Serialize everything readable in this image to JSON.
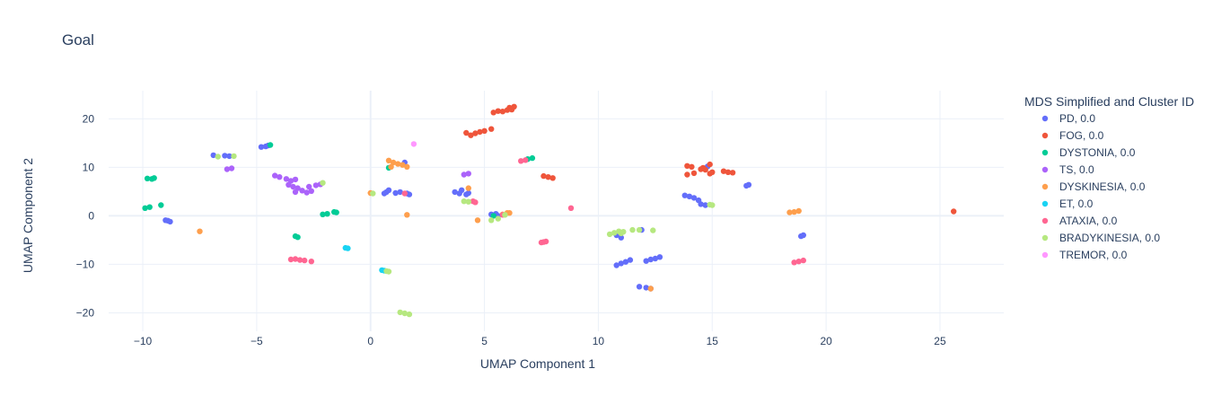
{
  "chart_data": {
    "type": "scatter",
    "title": "Goal",
    "xlabel": "UMAP Component 1",
    "ylabel": "UMAP Component 2",
    "xlim": [
      -11.5,
      27.8
    ],
    "ylim": [
      -23.8,
      25.8
    ],
    "xticks": [
      -10,
      -5,
      0,
      5,
      10,
      15,
      20,
      25
    ],
    "yticks": [
      -20,
      -10,
      0,
      10,
      20
    ],
    "grid": true,
    "legend_title": "MDS Simplified and Cluster ID",
    "legend_position": "right",
    "series": [
      {
        "name": "PD, 0.0",
        "color": "#636efa",
        "points": [
          [
            -6.9,
            12.5
          ],
          [
            -6.4,
            12.4
          ],
          [
            -6.2,
            12.3
          ],
          [
            -4.8,
            14.2
          ],
          [
            -4.6,
            14.3
          ],
          [
            -4.5,
            14.5
          ],
          [
            -9.0,
            -0.9
          ],
          [
            -8.9,
            -1.0
          ],
          [
            -8.8,
            -1.2
          ],
          [
            0.6,
            4.6
          ],
          [
            0.7,
            4.9
          ],
          [
            0.8,
            5.3
          ],
          [
            1.1,
            4.7
          ],
          [
            1.3,
            4.9
          ],
          [
            1.6,
            4.6
          ],
          [
            1.7,
            4.4
          ],
          [
            1.5,
            11.0
          ],
          [
            3.7,
            4.9
          ],
          [
            3.9,
            4.6
          ],
          [
            4.0,
            5.3
          ],
          [
            4.2,
            4.4
          ],
          [
            4.3,
            4.7
          ],
          [
            5.3,
            0.3
          ],
          [
            5.5,
            0.4
          ],
          [
            5.6,
            0.0
          ],
          [
            10.8,
            -10.2
          ],
          [
            11.0,
            -9.8
          ],
          [
            11.2,
            -9.5
          ],
          [
            11.4,
            -9.1
          ],
          [
            11.0,
            -4.5
          ],
          [
            10.8,
            -4.0
          ],
          [
            11.9,
            -2.9
          ],
          [
            12.1,
            -9.3
          ],
          [
            12.3,
            -9.0
          ],
          [
            12.5,
            -8.8
          ],
          [
            12.7,
            -8.5
          ],
          [
            11.8,
            -14.6
          ],
          [
            12.1,
            -14.8
          ],
          [
            12.3,
            -15.0
          ],
          [
            13.8,
            4.2
          ],
          [
            14.0,
            4.0
          ],
          [
            14.2,
            3.7
          ],
          [
            14.4,
            3.2
          ],
          [
            14.5,
            2.4
          ],
          [
            14.7,
            2.2
          ],
          [
            14.8,
            10.2
          ],
          [
            16.5,
            6.2
          ],
          [
            16.6,
            6.4
          ],
          [
            18.9,
            -4.2
          ],
          [
            19.0,
            -4.0
          ]
        ]
      },
      {
        "name": "FOG, 0.0",
        "color": "#ef553b",
        "points": [
          [
            4.2,
            17.1
          ],
          [
            4.4,
            16.6
          ],
          [
            4.6,
            17.0
          ],
          [
            4.8,
            17.3
          ],
          [
            5.0,
            17.5
          ],
          [
            5.3,
            17.9
          ],
          [
            5.4,
            21.3
          ],
          [
            5.6,
            21.6
          ],
          [
            5.8,
            21.5
          ],
          [
            6.0,
            21.8
          ],
          [
            6.1,
            22.3
          ],
          [
            6.3,
            22.5
          ],
          [
            6.2,
            21.9
          ],
          [
            7.6,
            8.2
          ],
          [
            7.8,
            8.0
          ],
          [
            8.0,
            7.8
          ],
          [
            13.9,
            10.3
          ],
          [
            14.1,
            10.1
          ],
          [
            13.9,
            8.5
          ],
          [
            14.2,
            8.8
          ],
          [
            14.5,
            9.6
          ],
          [
            14.6,
            9.9
          ],
          [
            14.7,
            9.5
          ],
          [
            14.9,
            10.6
          ],
          [
            15.0,
            9.0
          ],
          [
            14.9,
            8.7
          ],
          [
            15.5,
            9.2
          ],
          [
            15.7,
            9.0
          ],
          [
            15.9,
            8.9
          ],
          [
            25.6,
            0.9
          ]
        ]
      },
      {
        "name": "DYSTONIA, 0.0",
        "color": "#00cc96",
        "points": [
          [
            -9.9,
            1.6
          ],
          [
            -9.7,
            1.8
          ],
          [
            -9.2,
            2.2
          ],
          [
            -9.6,
            7.6
          ],
          [
            -9.8,
            7.7
          ],
          [
            -9.5,
            7.8
          ],
          [
            -4.4,
            14.6
          ],
          [
            -3.3,
            -4.2
          ],
          [
            -3.2,
            -4.4
          ],
          [
            -2.1,
            0.3
          ],
          [
            -1.9,
            0.4
          ],
          [
            -1.6,
            0.8
          ],
          [
            -1.5,
            0.7
          ],
          [
            0.8,
            9.9
          ],
          [
            5.4,
            0.0
          ],
          [
            6.9,
            11.7
          ],
          [
            7.1,
            11.9
          ]
        ]
      },
      {
        "name": "TS, 0.0",
        "color": "#ab63fa",
        "points": [
          [
            -4.2,
            8.3
          ],
          [
            -4.0,
            8.0
          ],
          [
            -3.7,
            7.6
          ],
          [
            -3.5,
            7.2
          ],
          [
            -3.3,
            7.5
          ],
          [
            -3.6,
            6.4
          ],
          [
            -3.4,
            6.0
          ],
          [
            -3.2,
            5.7
          ],
          [
            -3.0,
            5.2
          ],
          [
            -2.8,
            4.8
          ],
          [
            -3.3,
            4.9
          ],
          [
            -2.6,
            5.1
          ],
          [
            -2.4,
            6.3
          ],
          [
            -2.2,
            6.5
          ],
          [
            -2.7,
            6.0
          ],
          [
            -6.3,
            9.6
          ],
          [
            -6.1,
            9.8
          ],
          [
            4.1,
            8.5
          ],
          [
            4.3,
            8.7
          ]
        ]
      },
      {
        "name": "DYSKINESIA, 0.0",
        "color": "#fe9f4d",
        "points": [
          [
            -7.5,
            -3.2
          ],
          [
            0.0,
            4.7
          ],
          [
            0.8,
            11.4
          ],
          [
            1.0,
            11.0
          ],
          [
            1.2,
            10.7
          ],
          [
            1.4,
            10.5
          ],
          [
            1.6,
            10.1
          ],
          [
            0.9,
            10.1
          ],
          [
            1.6,
            0.2
          ],
          [
            4.3,
            5.7
          ],
          [
            4.7,
            -0.9
          ],
          [
            5.8,
            0.3
          ],
          [
            6.0,
            0.6
          ],
          [
            6.1,
            0.6
          ],
          [
            12.3,
            -15.0
          ],
          [
            18.4,
            0.7
          ],
          [
            18.6,
            0.8
          ],
          [
            18.8,
            1.0
          ]
        ]
      },
      {
        "name": "ET, 0.0",
        "color": "#19d3f3",
        "points": [
          [
            -1.1,
            -6.6
          ],
          [
            -1.0,
            -6.7
          ],
          [
            0.5,
            -11.2
          ],
          [
            0.6,
            -11.3
          ]
        ]
      },
      {
        "name": "ATAXIA, 0.0",
        "color": "#ff6692",
        "points": [
          [
            -3.5,
            -9.0
          ],
          [
            -3.3,
            -8.9
          ],
          [
            -3.1,
            -9.1
          ],
          [
            -2.9,
            -9.2
          ],
          [
            -2.6,
            -9.4
          ],
          [
            1.5,
            4.6
          ],
          [
            4.5,
            3.0
          ],
          [
            4.6,
            2.8
          ],
          [
            5.8,
            0.2
          ],
          [
            6.6,
            11.3
          ],
          [
            6.8,
            11.5
          ],
          [
            7.5,
            -5.5
          ],
          [
            7.6,
            -5.4
          ],
          [
            7.7,
            -5.3
          ],
          [
            8.8,
            1.6
          ],
          [
            18.6,
            -9.6
          ],
          [
            18.8,
            -9.4
          ],
          [
            19.0,
            -9.2
          ]
        ]
      },
      {
        "name": "BRADYKINESIA, 0.0",
        "color": "#b6e880",
        "points": [
          [
            -6.7,
            12.2
          ],
          [
            -6.0,
            12.3
          ],
          [
            -2.1,
            6.8
          ],
          [
            0.1,
            4.6
          ],
          [
            0.7,
            -11.4
          ],
          [
            0.8,
            -11.5
          ],
          [
            1.3,
            -19.9
          ],
          [
            1.5,
            -20.1
          ],
          [
            1.7,
            -20.3
          ],
          [
            4.1,
            3.0
          ],
          [
            4.3,
            2.9
          ],
          [
            5.6,
            -0.6
          ],
          [
            5.3,
            -0.9
          ],
          [
            5.9,
            0.2
          ],
          [
            10.5,
            -3.8
          ],
          [
            10.7,
            -3.5
          ],
          [
            10.9,
            -3.2
          ],
          [
            11.0,
            -3.6
          ],
          [
            11.1,
            -3.3
          ],
          [
            11.5,
            -2.9
          ],
          [
            11.8,
            -2.9
          ],
          [
            12.4,
            -3.0
          ],
          [
            14.9,
            2.3
          ],
          [
            15.0,
            2.2
          ]
        ]
      },
      {
        "name": "TREMOR, 0.0",
        "color": "#ff97ff",
        "points": [
          [
            1.9,
            14.8
          ]
        ]
      }
    ]
  }
}
